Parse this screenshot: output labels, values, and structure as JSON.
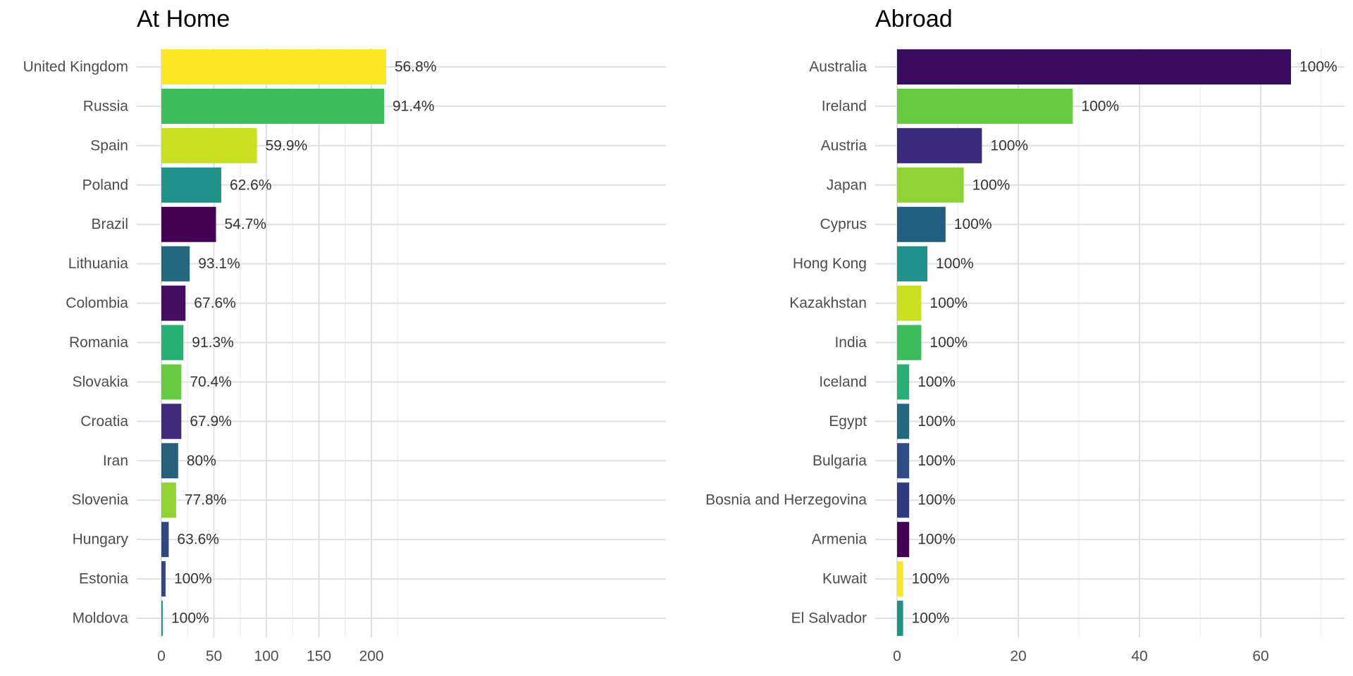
{
  "chart_data": [
    {
      "type": "bar",
      "orientation": "horizontal",
      "title": "At Home",
      "xlabel": "",
      "ylabel": "",
      "xlim": [
        0,
        240
      ],
      "x_ticks": [
        0,
        50,
        100,
        150,
        200
      ],
      "grid": true,
      "categories": [
        "United Kingdom",
        "Russia",
        "Spain",
        "Poland",
        "Brazil",
        "Lithuania",
        "Colombia",
        "Romania",
        "Slovakia",
        "Croatia",
        "Iran",
        "Slovenia",
        "Hungary",
        "Estonia",
        "Moldova"
      ],
      "values": [
        214,
        212,
        91,
        57,
        52,
        27,
        23,
        21,
        19,
        19,
        16,
        14,
        7,
        4,
        1
      ],
      "labels": [
        "56.8%",
        "91.4%",
        "59.9%",
        "62.6%",
        "54.7%",
        "93.1%",
        "67.6%",
        "91.3%",
        "70.4%",
        "67.9%",
        "80%",
        "77.8%",
        "63.6%",
        "100%",
        "100%"
      ],
      "colors": [
        "#FDE725",
        "#3DBC5B",
        "#C8E020",
        "#21918C",
        "#440154",
        "#23697E",
        "#440D60",
        "#29AE76",
        "#65CB43",
        "#3E2C7A",
        "#26607C",
        "#8FD334",
        "#32477F",
        "#3A4589",
        "#1F9A8A"
      ]
    },
    {
      "type": "bar",
      "orientation": "horizontal",
      "title": "Abroad",
      "xlabel": "",
      "ylabel": "",
      "xlim": [
        0,
        70
      ],
      "x_ticks": [
        0,
        20,
        40,
        60
      ],
      "grid": true,
      "categories": [
        "Australia",
        "Ireland",
        "Austria",
        "Japan",
        "Cyprus",
        "Hong Kong",
        "Kazakhstan",
        "India",
        "Iceland",
        "Egypt",
        "Bulgaria",
        "Bosnia and Herzegovina",
        "Armenia",
        "Kuwait",
        "El Salvador"
      ],
      "values": [
        65,
        29,
        14,
        11,
        8,
        5,
        4,
        4,
        2,
        2,
        2,
        2,
        2,
        1,
        1
      ],
      "labels": [
        "100%",
        "100%",
        "100%",
        "100%",
        "100%",
        "100%",
        "100%",
        "100%",
        "100%",
        "100%",
        "100%",
        "100%",
        "100%",
        "100%",
        "100%"
      ],
      "colors": [
        "#3A0C5F",
        "#65CB43",
        "#3A2B7D",
        "#8FD334",
        "#215E80",
        "#21918C",
        "#C8E020",
        "#3DBC5B",
        "#29AE76",
        "#23697E",
        "#2F4B88",
        "#34397F",
        "#440154",
        "#FDE725",
        "#21918C"
      ]
    }
  ]
}
